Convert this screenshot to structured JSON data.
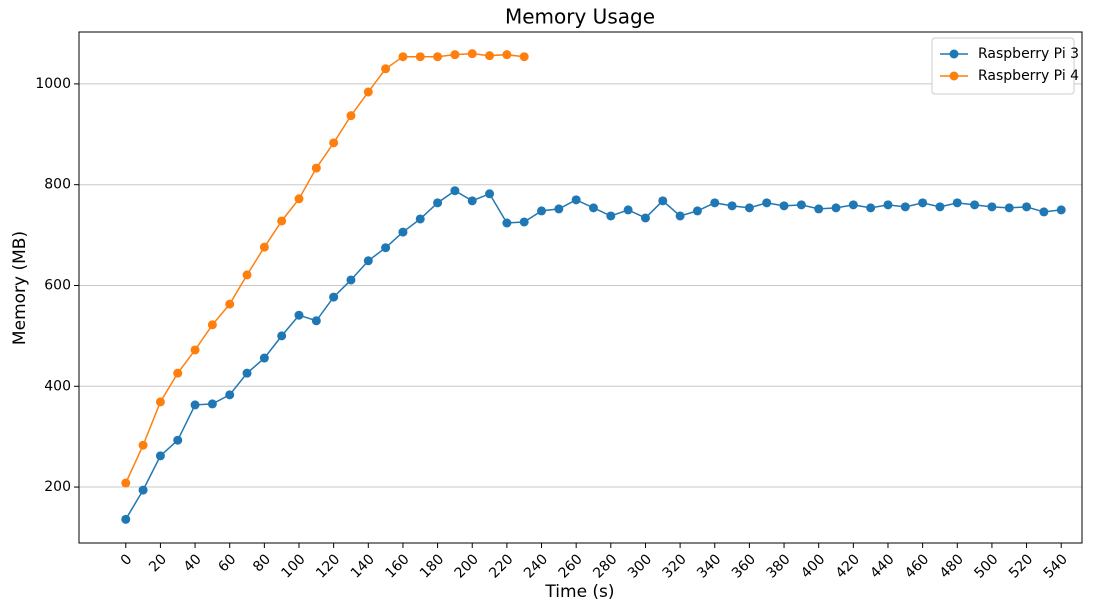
{
  "chart_data": {
    "type": "line",
    "title": "Memory Usage",
    "xlabel": "Time (s)",
    "ylabel": "Memory (MB)",
    "xlim": [
      -27,
      552
    ],
    "ylim": [
      89,
      1103
    ],
    "xticks": [
      0,
      20,
      40,
      60,
      80,
      100,
      120,
      140,
      160,
      180,
      200,
      220,
      240,
      260,
      280,
      300,
      320,
      340,
      360,
      380,
      400,
      420,
      440,
      460,
      480,
      500,
      520,
      540
    ],
    "yticks": [
      200,
      400,
      600,
      800,
      1000
    ],
    "grid": true,
    "legend": "upper right",
    "series": [
      {
        "name": "Raspberry Pi 3",
        "color": "#1f77b4",
        "x": [
          0,
          10,
          20,
          30,
          40,
          50,
          60,
          70,
          80,
          90,
          100,
          110,
          120,
          130,
          140,
          150,
          160,
          170,
          180,
          190,
          200,
          210,
          220,
          230,
          240,
          250,
          260,
          270,
          280,
          290,
          300,
          310,
          320,
          330,
          340,
          350,
          360,
          370,
          380,
          390,
          400,
          410,
          420,
          430,
          440,
          450,
          460,
          470,
          480,
          490,
          500,
          510,
          520,
          530,
          540
        ],
        "values": [
          136,
          194,
          262,
          293,
          363,
          365,
          383,
          426,
          456,
          500,
          541,
          530,
          577,
          611,
          649,
          675,
          706,
          732,
          764,
          788,
          768,
          782,
          724,
          726,
          748,
          752,
          770,
          754,
          738,
          750,
          734,
          768,
          738,
          748,
          764,
          758,
          754,
          764,
          758,
          760,
          752,
          754,
          760,
          754,
          760,
          756,
          764,
          756,
          764,
          760,
          756,
          754,
          756,
          746,
          750
        ]
      },
      {
        "name": "Raspberry Pi 4",
        "color": "#ff7f0e",
        "x": [
          0,
          10,
          20,
          30,
          40,
          50,
          60,
          70,
          80,
          90,
          100,
          110,
          120,
          130,
          140,
          150,
          160,
          170,
          180,
          190,
          200,
          210,
          220,
          230
        ],
        "values": [
          208,
          283,
          369,
          426,
          472,
          522,
          563,
          621,
          676,
          728,
          772,
          833,
          883,
          937,
          984,
          1030,
          1054,
          1054,
          1054,
          1058,
          1060,
          1056,
          1058,
          1054
        ]
      }
    ]
  }
}
